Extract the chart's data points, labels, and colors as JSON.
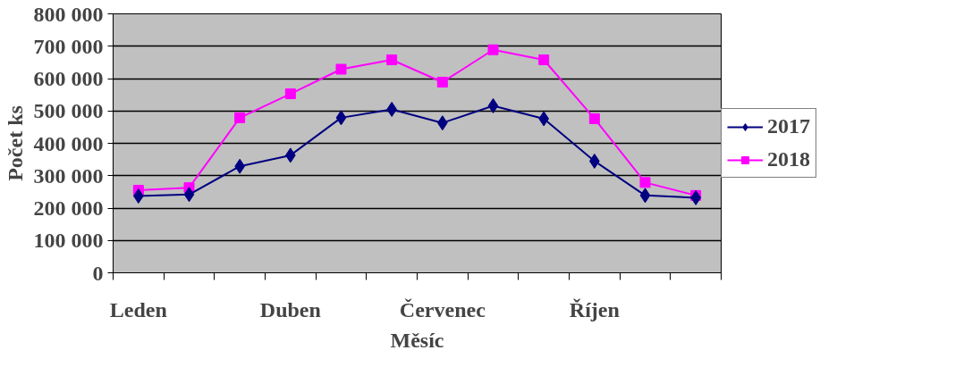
{
  "chart_data": {
    "type": "line",
    "xlabel": "Měsíc",
    "ylabel": "Počet ks",
    "categories": [
      "Leden",
      null,
      null,
      "Duben",
      null,
      null,
      "Červenec",
      null,
      null,
      "Říjen",
      null,
      null
    ],
    "series": [
      {
        "name": "2017",
        "color": "#000080",
        "marker": "diamond",
        "values": [
          237000,
          242000,
          329000,
          363000,
          479000,
          505000,
          463000,
          516000,
          476000,
          345000,
          239000,
          232000
        ]
      },
      {
        "name": "2018",
        "color": "#ff00ff",
        "marker": "square",
        "values": [
          255000,
          263000,
          479000,
          553000,
          629000,
          658000,
          589000,
          689000,
          658000,
          476000,
          279000,
          239000
        ]
      }
    ],
    "ylim": [
      0,
      800000
    ],
    "yticks": [
      {
        "value": 0,
        "label": "0"
      },
      {
        "value": 100000,
        "label": "100 000"
      },
      {
        "value": 200000,
        "label": "200 000"
      },
      {
        "value": 300000,
        "label": "300 000"
      },
      {
        "value": 400000,
        "label": "400 000"
      },
      {
        "value": 500000,
        "label": "500 000"
      },
      {
        "value": 600000,
        "label": "600 000"
      },
      {
        "value": 700000,
        "label": "700 000"
      },
      {
        "value": 800000,
        "label": "800 000"
      }
    ],
    "grid": "y",
    "legend": "right",
    "line_style": "solid"
  }
}
